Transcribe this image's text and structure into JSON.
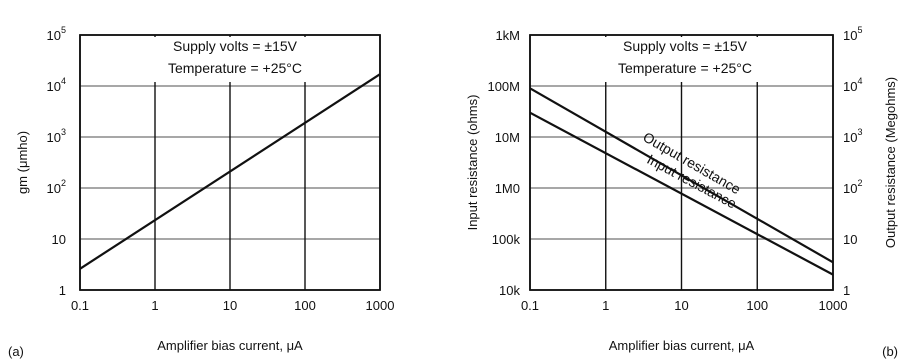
{
  "colors": {
    "gridline": "#8a8a8a",
    "axis": "#111111",
    "series": "#111111"
  },
  "chart_data": [
    {
      "id": "a",
      "type": "line",
      "panel_label": "(a)",
      "xlabel": "Amplifier bias current, μA",
      "ylabel": "gm (μmho)",
      "x_scale": "log",
      "y_scale": "log",
      "xlim": [
        0.1,
        1000
      ],
      "ylim": [
        1,
        100000
      ],
      "grid": true,
      "x_ticks": [
        {
          "value": 0.1,
          "label": "0.1"
        },
        {
          "value": 1,
          "label": "1"
        },
        {
          "value": 10,
          "label": "10"
        },
        {
          "value": 100,
          "label": "100"
        },
        {
          "value": 1000,
          "label": "1000"
        }
      ],
      "y_ticks": [
        {
          "value": 1,
          "base": "1",
          "exp": ""
        },
        {
          "value": 10,
          "base": "10",
          "exp": ""
        },
        {
          "value": 100,
          "base": "10",
          "exp": "2"
        },
        {
          "value": 1000,
          "base": "10",
          "exp": "3"
        },
        {
          "value": 10000,
          "base": "10",
          "exp": "4"
        },
        {
          "value": 100000,
          "base": "10",
          "exp": "5"
        }
      ],
      "annotations": [
        "Supply volts = ±15V",
        "Temperature = +25°C"
      ],
      "series": [
        {
          "x": [
            0.1,
            1000
          ],
          "y": [
            2.6,
            17000
          ]
        }
      ]
    },
    {
      "id": "b",
      "type": "line",
      "panel_label": "(b)",
      "xlabel": "Amplifier bias current, μA",
      "ylabel": "Input resistance (ohms)",
      "y2label": "Output resistance (Megohms)",
      "x_scale": "log",
      "y_scale": "log",
      "xlim": [
        0.1,
        1000
      ],
      "ylim": [
        10000,
        1000000000
      ],
      "y2lim": [
        1,
        100000
      ],
      "grid": true,
      "x_ticks": [
        {
          "value": 0.1,
          "label": "0.1"
        },
        {
          "value": 1,
          "label": "1"
        },
        {
          "value": 10,
          "label": "10"
        },
        {
          "value": 100,
          "label": "100"
        },
        {
          "value": 1000,
          "label": "1000"
        }
      ],
      "y_ticks": [
        {
          "value": 10000,
          "label": "10k"
        },
        {
          "value": 100000,
          "label": "100k"
        },
        {
          "value": 1000000,
          "label": "1M0"
        },
        {
          "value": 10000000,
          "label": "10M"
        },
        {
          "value": 100000000,
          "label": "100M"
        },
        {
          "value": 1000000000,
          "label": "1kM"
        }
      ],
      "y2_ticks": [
        {
          "value": 1,
          "base": "1",
          "exp": ""
        },
        {
          "value": 10,
          "base": "10",
          "exp": ""
        },
        {
          "value": 100,
          "base": "10",
          "exp": "2"
        },
        {
          "value": 1000,
          "base": "10",
          "exp": "3"
        },
        {
          "value": 10000,
          "base": "10",
          "exp": "4"
        },
        {
          "value": 100000,
          "base": "10",
          "exp": "5"
        }
      ],
      "annotations": [
        "Supply volts = ±15V",
        "Temperature = +25°C"
      ],
      "series": [
        {
          "name": "Output resistance",
          "axis": "y2",
          "x": [
            0.1,
            1000
          ],
          "y": [
            9000,
            3.5
          ]
        },
        {
          "name": "Input resistance",
          "axis": "y",
          "x": [
            0.1,
            1000
          ],
          "y": [
            30000000,
            20000
          ]
        }
      ]
    }
  ]
}
